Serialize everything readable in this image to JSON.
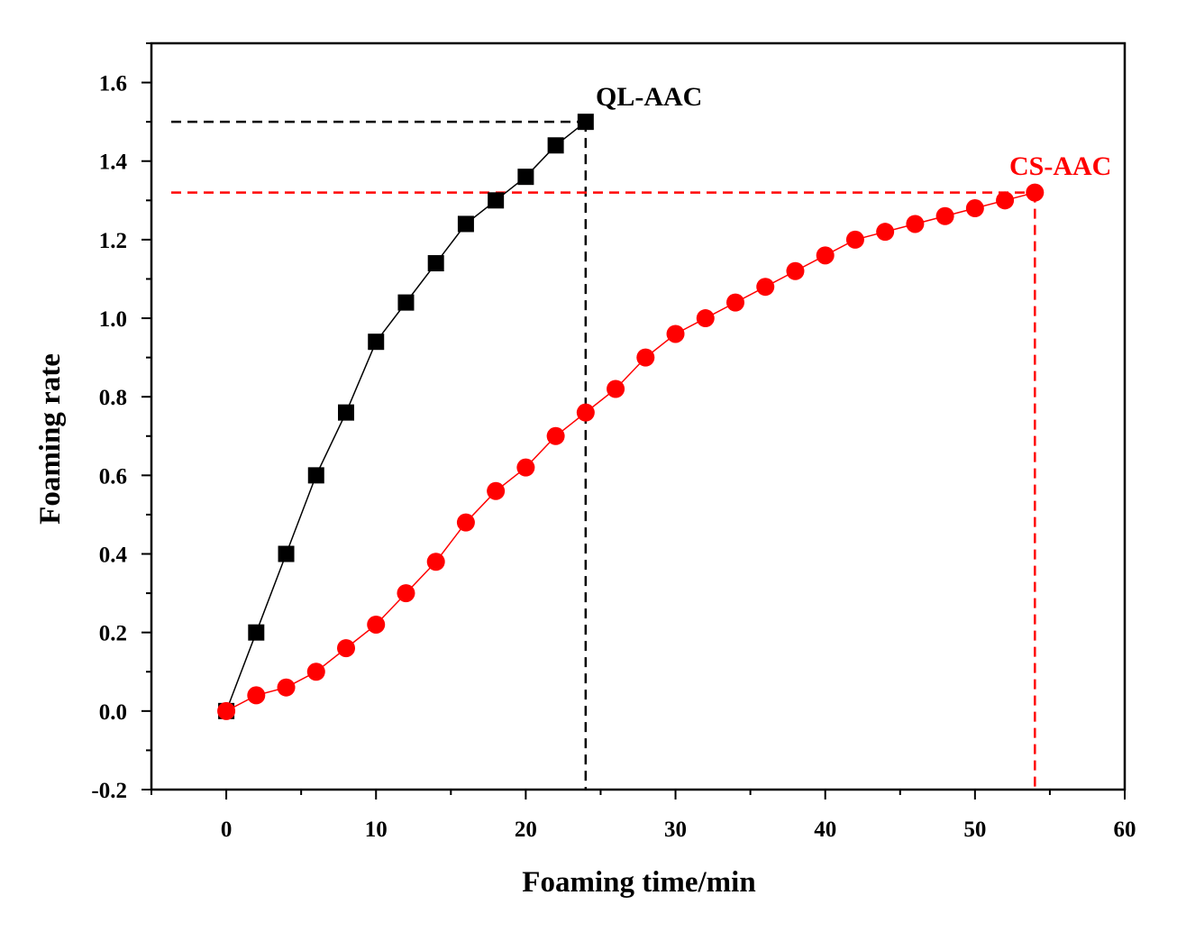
{
  "colors": {
    "series_ql": "#000000",
    "series_cs": "#ff0000",
    "axis": "#000000",
    "background": "#ffffff"
  },
  "chart_data": {
    "type": "line",
    "title": "",
    "xlabel": "Foaming time/min",
    "ylabel": "Foaming rate",
    "xlim": [
      -5,
      60
    ],
    "ylim": [
      -0.2,
      1.7
    ],
    "xticks": [
      0,
      10,
      20,
      30,
      40,
      50,
      60
    ],
    "xtick_labels": [
      "0",
      "10",
      "20",
      "30",
      "40",
      "50",
      "60"
    ],
    "yticks": [
      -0.2,
      0.0,
      0.2,
      0.4,
      0.6,
      0.8,
      1.0,
      1.2,
      1.4,
      1.6
    ],
    "ytick_labels": [
      "-0.2",
      "0.0",
      "0.2",
      "0.4",
      "0.6",
      "0.8",
      "1.0",
      "1.2",
      "1.4",
      "1.6"
    ],
    "grid": false,
    "series": [
      {
        "name": "QL-AAC",
        "marker": "square",
        "color": "#000000",
        "x": [
          0,
          2,
          4,
          6,
          8,
          10,
          12,
          14,
          16,
          18,
          20,
          22,
          24
        ],
        "values": [
          0.0,
          0.2,
          0.4,
          0.6,
          0.76,
          0.94,
          1.04,
          1.14,
          1.24,
          1.3,
          1.36,
          1.44,
          1.5
        ],
        "guide": {
          "x": 24,
          "y": 1.5
        }
      },
      {
        "name": "CS-AAC",
        "marker": "circle",
        "color": "#ff0000",
        "x": [
          0,
          2,
          4,
          6,
          8,
          10,
          12,
          14,
          16,
          18,
          20,
          22,
          24,
          26,
          28,
          30,
          32,
          34,
          36,
          38,
          40,
          42,
          44,
          46,
          48,
          50,
          52,
          54
        ],
        "values": [
          0.0,
          0.04,
          0.06,
          0.1,
          0.16,
          0.22,
          0.3,
          0.38,
          0.48,
          0.56,
          0.62,
          0.7,
          0.76,
          0.82,
          0.9,
          0.96,
          1.0,
          1.04,
          1.08,
          1.12,
          1.16,
          1.2,
          1.22,
          1.24,
          1.26,
          1.28,
          1.3,
          1.32
        ],
        "guide": {
          "x": 54,
          "y": 1.32
        }
      }
    ]
  }
}
